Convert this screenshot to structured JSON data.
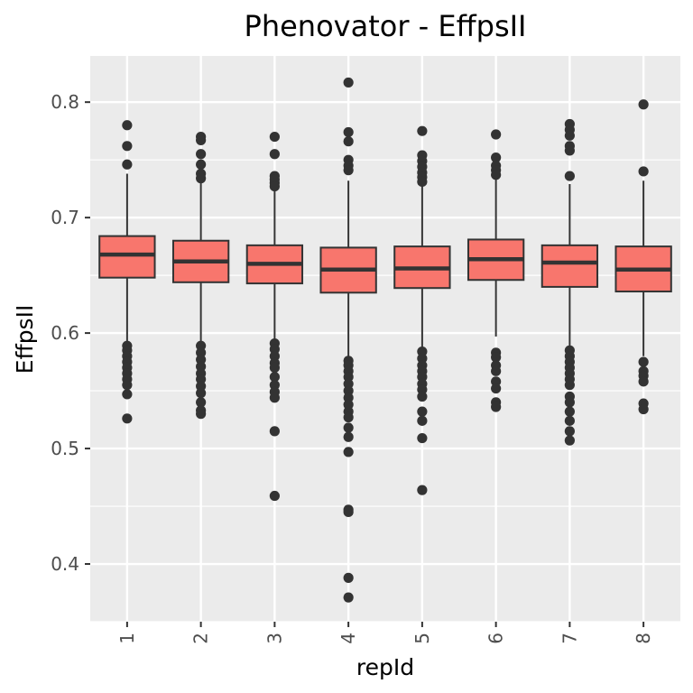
{
  "colors": {
    "panel_background": "#ebebeb",
    "grid_major": "#ffffff",
    "box_fill": "#f8766d",
    "box_line": "#333333",
    "outlier": "#333333",
    "tick_text": "#4d4d4d",
    "text": "#000000"
  },
  "chart_data": {
    "type": "boxplot",
    "title": "Phenovator - EffpsII",
    "xlabel": "repId",
    "ylabel": "EffpsII",
    "ylim": [
      0.35,
      0.84
    ],
    "yticks": [
      0.4,
      0.5,
      0.6,
      0.7,
      0.8
    ],
    "ytick_labels": [
      "0.4",
      "0.5",
      "0.6",
      "0.7",
      "0.8"
    ],
    "grid": true,
    "legend": "none",
    "categories": [
      "1",
      "2",
      "3",
      "4",
      "5",
      "6",
      "7",
      "8"
    ],
    "boxes": [
      {
        "category": "1",
        "whisker_low": 0.591,
        "q1": 0.648,
        "median": 0.668,
        "q3": 0.684,
        "whisker_high": 0.738,
        "outliers": [
          0.78,
          0.762,
          0.746,
          0.589,
          0.585,
          0.58,
          0.575,
          0.57,
          0.565,
          0.56,
          0.555,
          0.547,
          0.526
        ]
      },
      {
        "category": "2",
        "whisker_low": 0.592,
        "q1": 0.644,
        "median": 0.662,
        "q3": 0.68,
        "whisker_high": 0.73,
        "outliers": [
          0.77,
          0.767,
          0.755,
          0.746,
          0.738,
          0.734,
          0.589,
          0.583,
          0.577,
          0.571,
          0.565,
          0.56,
          0.554,
          0.548,
          0.54,
          0.533,
          0.53
        ]
      },
      {
        "category": "3",
        "whisker_low": 0.594,
        "q1": 0.643,
        "median": 0.66,
        "q3": 0.676,
        "whisker_high": 0.726,
        "outliers": [
          0.77,
          0.755,
          0.736,
          0.733,
          0.73,
          0.727,
          0.591,
          0.586,
          0.58,
          0.574,
          0.57,
          0.562,
          0.555,
          0.549,
          0.544,
          0.515,
          0.459
        ]
      },
      {
        "category": "4",
        "whisker_low": 0.579,
        "q1": 0.635,
        "median": 0.655,
        "q3": 0.674,
        "whisker_high": 0.732,
        "outliers": [
          0.817,
          0.774,
          0.766,
          0.75,
          0.745,
          0.741,
          0.576,
          0.572,
          0.567,
          0.562,
          0.556,
          0.55,
          0.544,
          0.538,
          0.532,
          0.527,
          0.518,
          0.51,
          0.497,
          0.447,
          0.445,
          0.388,
          0.371
        ]
      },
      {
        "category": "5",
        "whisker_low": 0.587,
        "q1": 0.639,
        "median": 0.656,
        "q3": 0.675,
        "whisker_high": 0.728,
        "outliers": [
          0.775,
          0.754,
          0.749,
          0.744,
          0.739,
          0.735,
          0.731,
          0.584,
          0.578,
          0.572,
          0.567,
          0.562,
          0.556,
          0.551,
          0.545,
          0.532,
          0.524,
          0.509,
          0.464
        ]
      },
      {
        "category": "6",
        "whisker_low": 0.597,
        "q1": 0.646,
        "median": 0.664,
        "q3": 0.681,
        "whisker_high": 0.733,
        "outliers": [
          0.772,
          0.752,
          0.745,
          0.741,
          0.737,
          0.583,
          0.579,
          0.572,
          0.567,
          0.558,
          0.552,
          0.54,
          0.536
        ]
      },
      {
        "category": "7",
        "whisker_low": 0.589,
        "q1": 0.64,
        "median": 0.661,
        "q3": 0.676,
        "whisker_high": 0.729,
        "outliers": [
          0.781,
          0.776,
          0.771,
          0.762,
          0.758,
          0.736,
          0.585,
          0.58,
          0.575,
          0.57,
          0.565,
          0.56,
          0.555,
          0.545,
          0.54,
          0.532,
          0.524,
          0.515,
          0.507
        ]
      },
      {
        "category": "8",
        "whisker_low": 0.58,
        "q1": 0.636,
        "median": 0.655,
        "q3": 0.675,
        "whisker_high": 0.732,
        "outliers": [
          0.798,
          0.74,
          0.575,
          0.567,
          0.563,
          0.558,
          0.539,
          0.534
        ]
      }
    ]
  }
}
